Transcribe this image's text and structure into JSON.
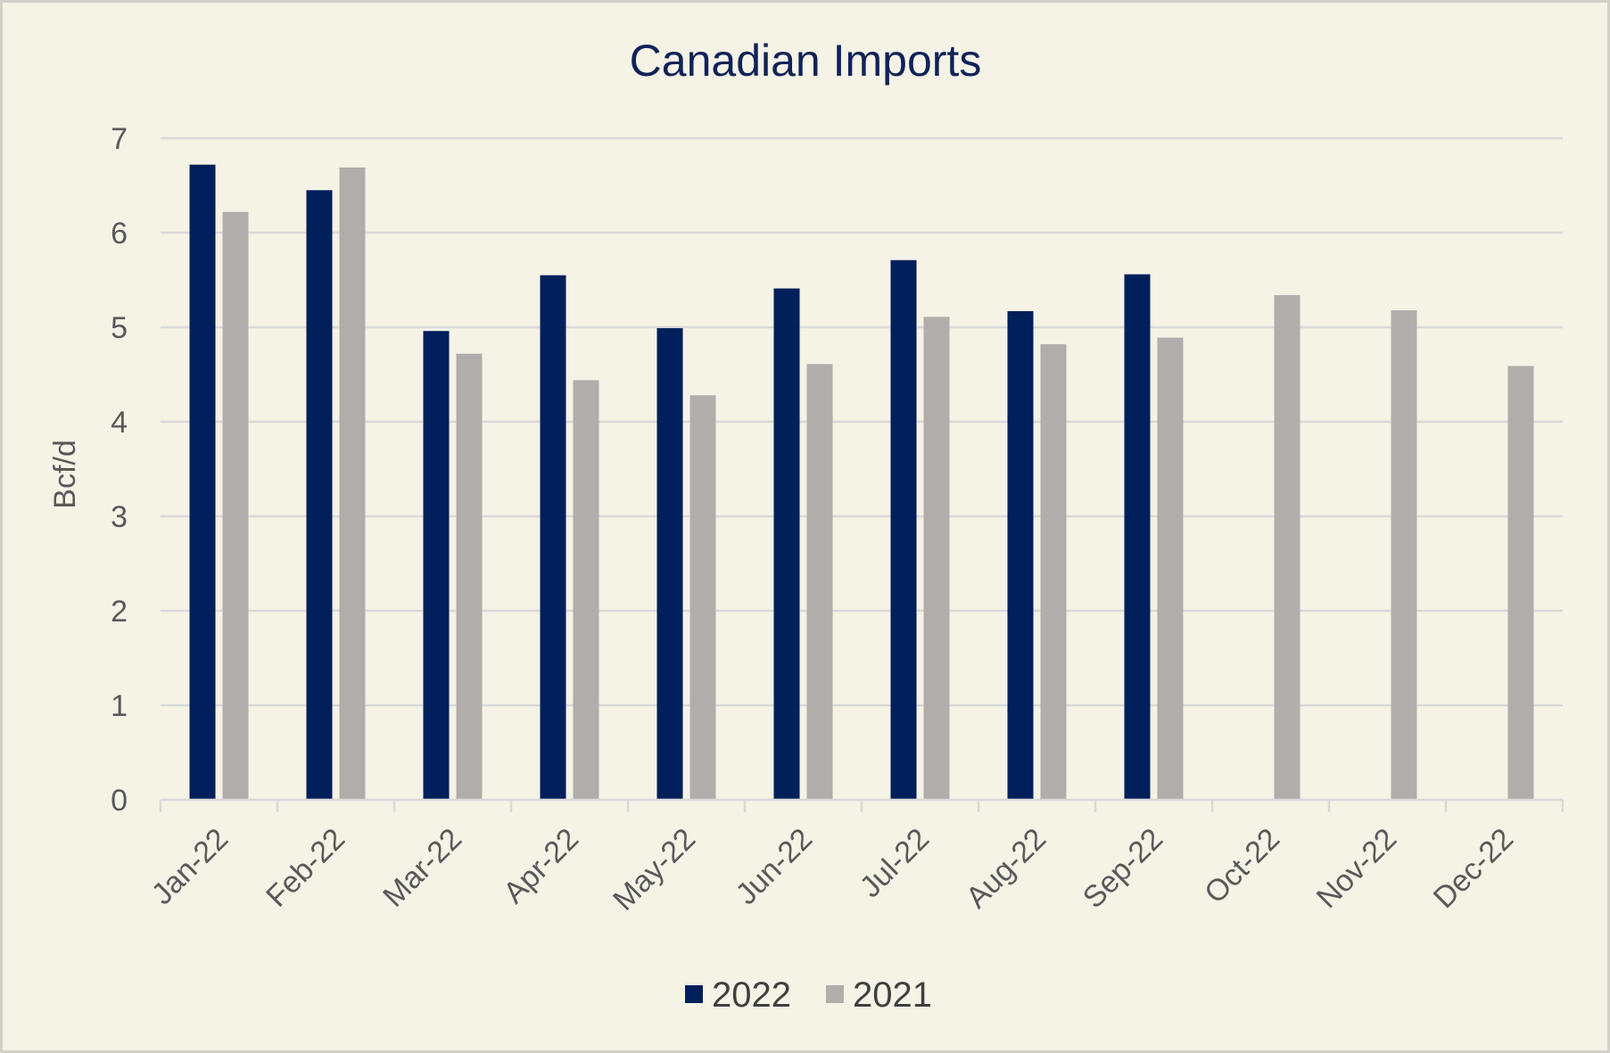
{
  "chart_data": {
    "type": "bar",
    "title": "Canadian Imports",
    "xlabel": "",
    "ylabel": "Bcf/d",
    "ylim": [
      0,
      7
    ],
    "yticks": [
      0,
      1,
      2,
      3,
      4,
      5,
      6,
      7
    ],
    "grid": true,
    "legend_position": "bottom",
    "categories": [
      "Jan-22",
      "Feb-22",
      "Mar-22",
      "Apr-22",
      "May-22",
      "Jun-22",
      "Jul-22",
      "Aug-22",
      "Sep-22",
      "Oct-22",
      "Nov-22",
      "Dec-22"
    ],
    "series": [
      {
        "name": "2022",
        "color": "#001f5b",
        "values": [
          6.72,
          6.45,
          4.96,
          5.55,
          4.99,
          5.41,
          5.71,
          5.17,
          5.56,
          null,
          null,
          null
        ]
      },
      {
        "name": "2021",
        "color": "#b1adab",
        "values": [
          6.22,
          6.69,
          4.72,
          4.44,
          4.28,
          4.61,
          5.11,
          4.82,
          4.89,
          5.34,
          5.18,
          4.59
        ]
      }
    ]
  }
}
